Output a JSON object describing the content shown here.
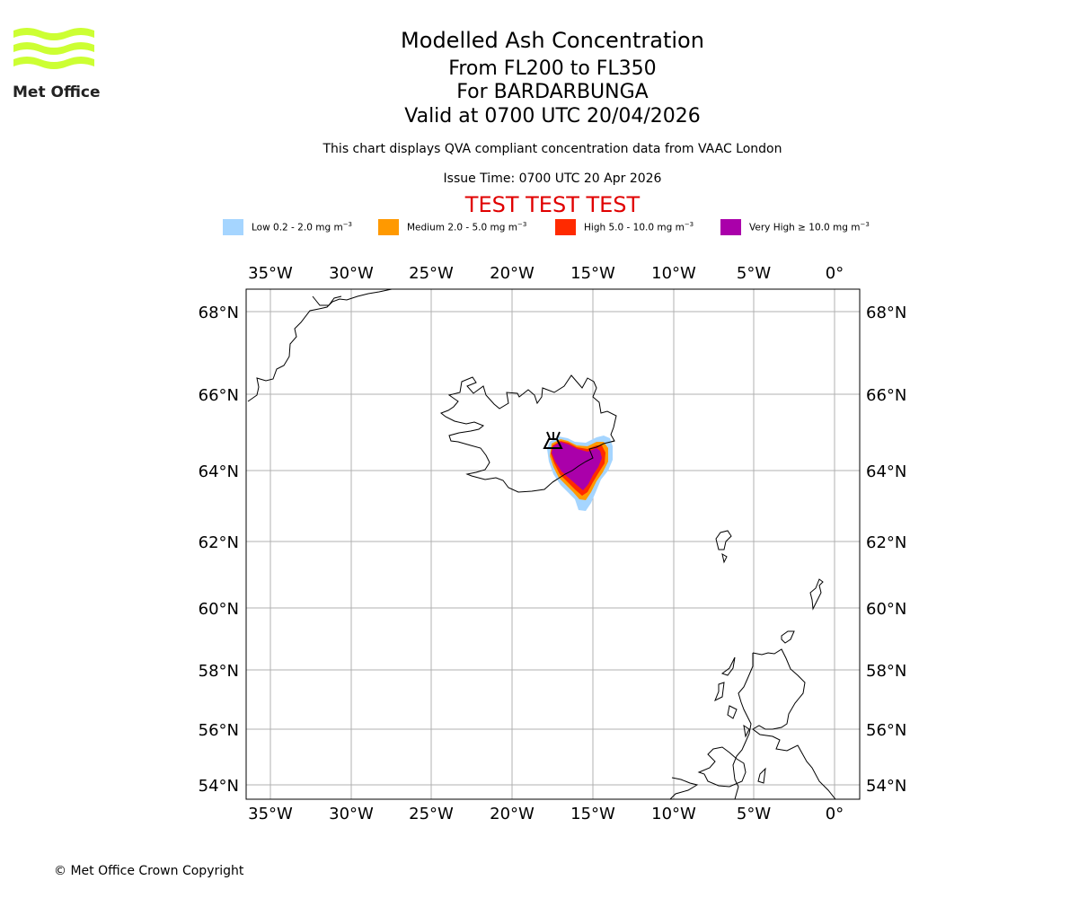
{
  "logo": {
    "text": "Met Office",
    "color": "#ccff33"
  },
  "header": {
    "title": "Modelled Ash Concentration",
    "levels": "From FL200 to FL350",
    "volcano": "For BARDARBUNGA",
    "valid": "Valid at 0700 UTC 20/04/2026",
    "note": "This chart displays QVA compliant concentration data from VAAC London",
    "issue_time": "Issue Time: 0700 UTC 20 Apr 2026",
    "test_banner": "TEST TEST TEST"
  },
  "legend": [
    {
      "label": "Low 0.2 - 2.0 mg m",
      "exp": "−3",
      "color": "#a5d5ff"
    },
    {
      "label": "Medium 2.0 - 5.0 mg m",
      "exp": "−3",
      "color": "#ff9900"
    },
    {
      "label": "High 5.0 - 10.0 mg m",
      "exp": "−3",
      "color": "#ff2a00"
    },
    {
      "label": "Very High ≥ 10.0 mg m",
      "exp": "−3",
      "color": "#aa00aa"
    }
  ],
  "map": {
    "lon_ticks": [
      "35°W",
      "30°W",
      "25°W",
      "20°W",
      "15°W",
      "10°W",
      "5°W",
      "0°"
    ],
    "lat_ticks": [
      "68°N",
      "66°N",
      "64°N",
      "62°N",
      "60°N",
      "58°N",
      "56°N",
      "54°N"
    ],
    "volcano_name": "Bardarbunga",
    "volcano_lon": -17.5,
    "volcano_lat": 64.64
  },
  "footer": {
    "copyright": "© Met Office Crown Copyright"
  }
}
